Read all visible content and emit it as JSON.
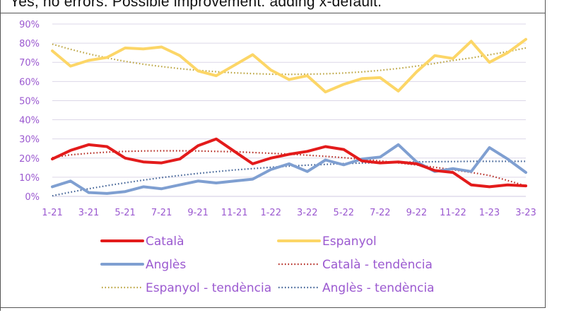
{
  "caption_text": "Yes, no errors. Possible improvement: adding x-default.",
  "colors": {
    "catala": "#e31b1b",
    "espanyol": "#fcd667",
    "angles": "#7f9fd1",
    "catala_trend": "#b3261e",
    "espanyol_trend": "#b9a13a",
    "angles_trend": "#3a5c92",
    "axis_text": "#9b59d0",
    "grid": "#dcd7e8"
  },
  "chart_data": {
    "type": "line",
    "title": "",
    "xlabel": "",
    "ylabel": "",
    "ylim": [
      0,
      90
    ],
    "yticks": [
      "0%",
      "10%",
      "20%",
      "30%",
      "40%",
      "50%",
      "60%",
      "70%",
      "80%",
      "90%"
    ],
    "x_tick_labels": [
      "1-21",
      "3-21",
      "5-21",
      "7-21",
      "9-21",
      "11-21",
      "1-22",
      "3-22",
      "5-22",
      "7-22",
      "9-22",
      "11-22",
      "1-23",
      "3-23"
    ],
    "x_count": 27,
    "series": [
      {
        "name": "Català",
        "style": "solid",
        "values": [
          19.5,
          24,
          27,
          26,
          20,
          18,
          17.5,
          19.5,
          26.5,
          30,
          23.5,
          17,
          20,
          22,
          23.5,
          26,
          24.5,
          18.5,
          17.5,
          18,
          17,
          13.5,
          12.5,
          6,
          5,
          6,
          5.5
        ]
      },
      {
        "name": "Espanyol",
        "style": "solid",
        "values": [
          76,
          68,
          71,
          72.5,
          77.5,
          77,
          78,
          73.5,
          65.5,
          63,
          68.5,
          74,
          66,
          61,
          63,
          54.5,
          58.5,
          61.5,
          62,
          55,
          65,
          73.5,
          72,
          81,
          70,
          75,
          82
        ]
      },
      {
        "name": "Anglès",
        "style": "solid",
        "values": [
          5,
          8,
          2,
          1.5,
          2.5,
          5,
          4,
          6,
          8,
          7,
          8,
          9,
          14,
          17,
          13,
          19,
          16.5,
          19.5,
          20.5,
          27,
          18,
          13,
          14.5,
          13,
          25.5,
          19.5,
          12.5
        ]
      },
      {
        "name": "Català - tendència",
        "style": "dotted",
        "values": [
          20.2,
          21.7,
          22.5,
          23.1,
          23.5,
          23.7,
          23.8,
          23.8,
          23.7,
          23.5,
          23.3,
          22.9,
          22.5,
          22.1,
          21.5,
          20.9,
          20.2,
          19.4,
          18.5,
          17.5,
          16.4,
          15.2,
          13.9,
          12.5,
          10.9,
          8.3,
          5.5
        ]
      },
      {
        "name": "Espanyol - tendència",
        "style": "dotted",
        "values": [
          79.5,
          76.8,
          74.4,
          72.3,
          70.5,
          69.0,
          67.8,
          66.7,
          65.8,
          65.1,
          64.5,
          64.1,
          63.8,
          63.7,
          63.8,
          64.0,
          64.4,
          65.0,
          65.8,
          66.8,
          68.0,
          69.4,
          71.0,
          72.3,
          73.9,
          75.6,
          77.5
        ]
      },
      {
        "name": "Anglès - tendència",
        "style": "dotted",
        "values": [
          0.3,
          2.2,
          4.0,
          5.6,
          7.1,
          8.5,
          9.8,
          10.9,
          12.0,
          12.9,
          13.8,
          14.5,
          15.2,
          15.8,
          16.3,
          16.7,
          17.1,
          17.4,
          17.6,
          17.8,
          18.0,
          18.1,
          18.2,
          18.3,
          18.3,
          18.3,
          18.3
        ]
      }
    ],
    "legend": [
      {
        "label": "Català",
        "key": "catala",
        "style": "solid"
      },
      {
        "label": "Espanyol",
        "key": "espanyol",
        "style": "solid"
      },
      {
        "label": "Anglès",
        "key": "angles",
        "style": "solid"
      },
      {
        "label": "Català - tendència",
        "key": "catala_trend",
        "style": "dotted"
      },
      {
        "label": "Espanyol - tendència",
        "key": "espanyol_trend",
        "style": "dotted"
      },
      {
        "label": "Anglès - tendència",
        "key": "angles_trend",
        "style": "dotted"
      }
    ],
    "legend_position": "bottom",
    "grid": true
  }
}
